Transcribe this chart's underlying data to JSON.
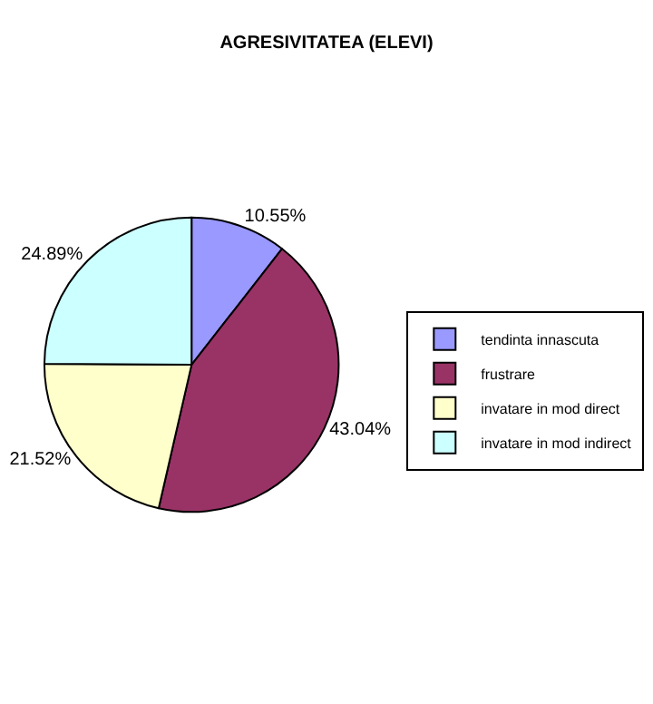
{
  "chart_data": {
    "type": "pie",
    "title": "AGRESIVITATEA (ELEVI)",
    "categories": [
      "tendinta innascuta",
      "frustrare",
      "invatare in mod direct",
      "invatare in mod indirect"
    ],
    "values": [
      10.55,
      43.04,
      21.52,
      24.89
    ],
    "value_labels": [
      "10.55%",
      "43.04%",
      "21.52%",
      "24.89%"
    ],
    "colors": [
      "#9999ff",
      "#993366",
      "#ffffcc",
      "#ccffff"
    ],
    "legend": "right"
  }
}
